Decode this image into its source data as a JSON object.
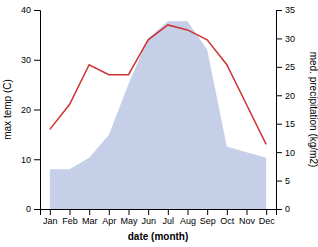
{
  "chart_data": {
    "type": "line",
    "xlabel": "date (month)",
    "ylabel": "max temp (C)",
    "y2label": "med. precipitation (kg/m2)",
    "categories": [
      "Jan",
      "Feb",
      "Mar",
      "Apr",
      "May",
      "Jun",
      "Jul",
      "Aug",
      "Sep",
      "Oct",
      "Nov",
      "Dec"
    ],
    "series": [
      {
        "type": "area",
        "axis": "y2",
        "color": "#c5cfe8",
        "values": [
          7,
          7,
          9,
          13,
          22,
          30,
          33,
          33,
          28,
          11,
          10,
          9
        ]
      },
      {
        "type": "line",
        "color": "#cc3333",
        "values": [
          16,
          21,
          29,
          27,
          27,
          34,
          37,
          36,
          34,
          29,
          21,
          13
        ]
      }
    ],
    "ylim": [
      0,
      40
    ],
    "yticks": [
      0,
      10,
      20,
      30,
      40
    ],
    "y2lim": [
      0,
      35
    ],
    "y2ticks": [
      0,
      5,
      10,
      15,
      20,
      25,
      30,
      35
    ],
    "grid": false
  }
}
